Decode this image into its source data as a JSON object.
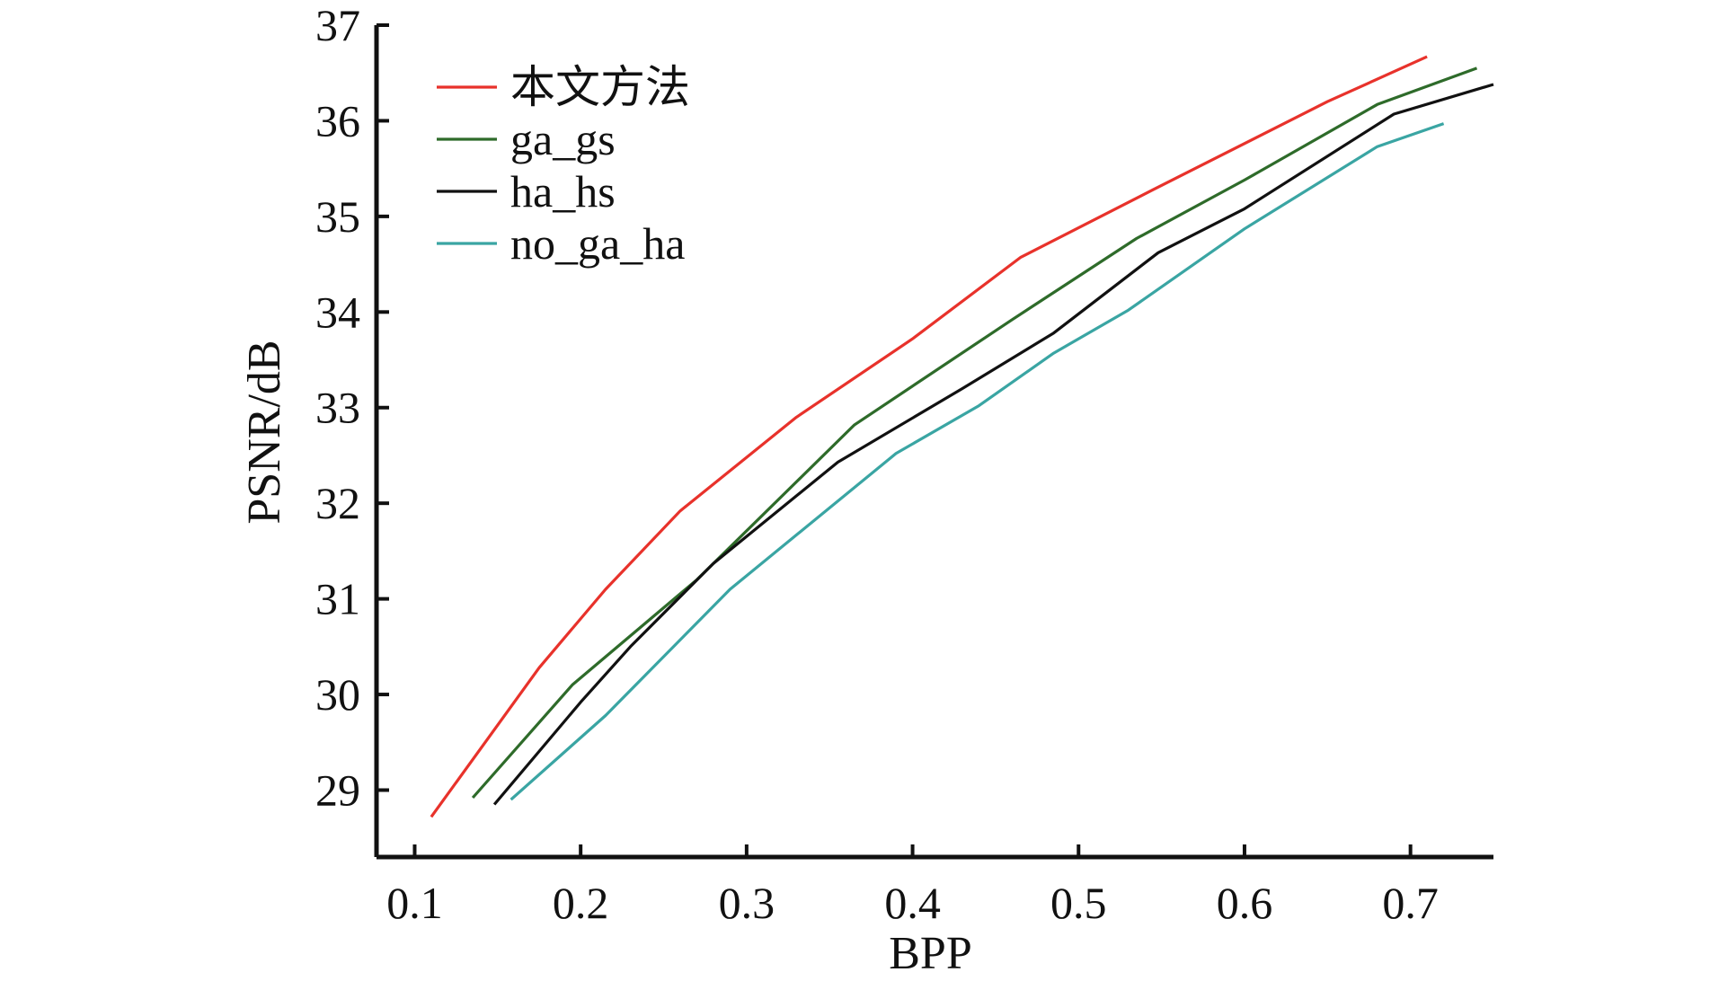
{
  "chart_data": {
    "type": "line",
    "title": "",
    "xlabel": "BPP",
    "ylabel": "PSNR/dB",
    "xlim": [
      0.077,
      0.75
    ],
    "ylim": [
      28.3,
      37.0
    ],
    "xticks": [
      0.1,
      0.2,
      0.3,
      0.4,
      0.5,
      0.6,
      0.7
    ],
    "xtick_labels": [
      "0.1",
      "0.2",
      "0.3",
      "0.4",
      "0.5",
      "0.6",
      "0.7"
    ],
    "yticks": [
      29,
      30,
      31,
      32,
      33,
      34,
      35,
      36,
      37
    ],
    "ytick_labels": [
      "29",
      "30",
      "31",
      "32",
      "33",
      "34",
      "35",
      "36",
      "37"
    ],
    "grid": false,
    "legend_position": "top-left",
    "series": [
      {
        "name": "本文方法",
        "color": "#e8322b",
        "x": [
          0.11,
          0.175,
          0.215,
          0.26,
          0.33,
          0.4,
          0.465,
          0.545,
          0.65,
          0.71
        ],
        "y": [
          28.72,
          30.28,
          31.1,
          31.92,
          32.9,
          33.72,
          34.57,
          35.28,
          36.2,
          36.67
        ]
      },
      {
        "name": "ga_gs",
        "color": "#2e6b2a",
        "x": [
          0.135,
          0.195,
          0.27,
          0.365,
          0.46,
          0.535,
          0.6,
          0.68,
          0.74
        ],
        "y": [
          28.92,
          30.1,
          31.2,
          32.82,
          33.92,
          34.77,
          35.38,
          36.17,
          36.55
        ]
      },
      {
        "name": "ha_hs",
        "color": "#111111",
        "x": [
          0.148,
          0.2,
          0.23,
          0.28,
          0.355,
          0.43,
          0.485,
          0.548,
          0.6,
          0.69,
          0.75
        ],
        "y": [
          28.85,
          29.92,
          30.5,
          31.37,
          32.43,
          33.2,
          33.78,
          34.62,
          35.08,
          36.07,
          36.38
        ]
      },
      {
        "name": "no_ga_ha",
        "color": "#3aa5a3",
        "x": [
          0.158,
          0.215,
          0.29,
          0.39,
          0.44,
          0.485,
          0.53,
          0.6,
          0.68,
          0.72
        ],
        "y": [
          28.9,
          29.78,
          31.1,
          32.52,
          33.02,
          33.57,
          34.02,
          34.87,
          35.73,
          35.97
        ]
      }
    ]
  }
}
